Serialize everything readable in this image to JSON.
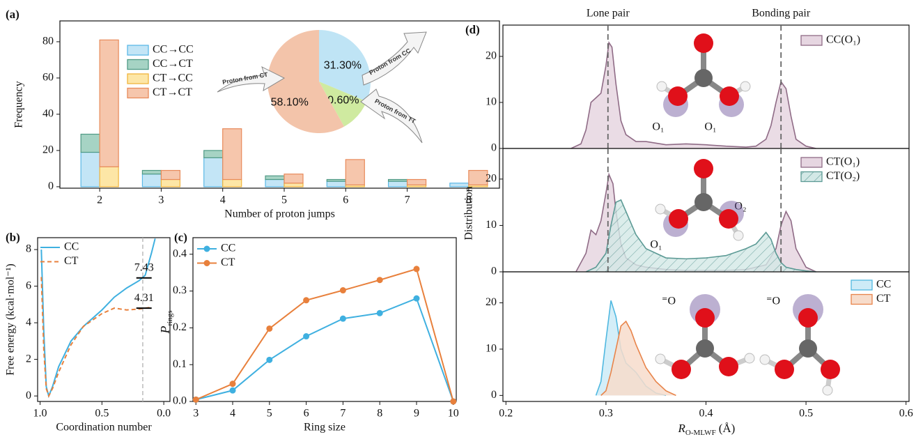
{
  "chart_data": [
    {
      "type": "bar",
      "panel": "(a)",
      "x_label": "Number of proton jumps",
      "y_label": "Frequency",
      "categories": [
        "2",
        "3",
        "4",
        "5",
        "6",
        "7",
        "8"
      ],
      "series": [
        {
          "name": "CC→CC",
          "color": "#c3e5f6",
          "edgecolor": "#5bb8e6",
          "values": [
            19,
            7,
            16,
            4,
            3,
            3,
            2
          ]
        },
        {
          "name": "CC→CT",
          "color": "#a6d3c4",
          "edgecolor": "#4f9a85",
          "values": [
            10,
            2,
            4,
            2,
            1,
            1,
            0
          ]
        },
        {
          "name": "CT→CC",
          "color": "#fde6a6",
          "edgecolor": "#f0b43c",
          "values": [
            11,
            4,
            4,
            2,
            1,
            1,
            1
          ]
        },
        {
          "name": "CT→CT",
          "color": "#f6c6ac",
          "edgecolor": "#e88a5a",
          "values": [
            70,
            5,
            28,
            5,
            14,
            3,
            8
          ]
        }
      ],
      "ylim": [
        -0.8,
        91.5
      ],
      "yticks": [
        0,
        20,
        40,
        60,
        80
      ],
      "legend": "upper left",
      "grid": false
    },
    {
      "type": "pie",
      "labels": [
        "Proton from CC",
        "Proton from TT",
        "Proton from CT"
      ],
      "values": [
        31.3,
        10.6,
        58.1
      ],
      "value_labels": [
        "31.30%",
        "10.60%",
        "58.10%"
      ],
      "colors": [
        "#bfe4f5",
        "#cfeaa0",
        "#f3c4aa"
      ]
    },
    {
      "type": "line",
      "panel": "(b)",
      "x_label": "Coordination number",
      "y_label": "Free energy (kcal·mol⁻¹)",
      "x": [
        0.99,
        0.97,
        0.95,
        0.93,
        0.9,
        0.85,
        0.75,
        0.65,
        0.5,
        0.4,
        0.3,
        0.2,
        0.15,
        0.1,
        0.07
      ],
      "series": [
        {
          "name": "CC",
          "color": "#3fb0e0",
          "linestyle": "solid",
          "values": [
            8.0,
            3.5,
            0.5,
            0,
            0.5,
            1.6,
            3.0,
            3.8,
            4.7,
            5.4,
            5.9,
            6.3,
            6.6,
            7.8,
            8.6
          ]
        },
        {
          "name": "CT",
          "color": "#e8803c",
          "linestyle": "dashed",
          "values": [
            6.5,
            2.5,
            0.4,
            0,
            0.4,
            1.3,
            2.8,
            3.8,
            4.5,
            4.8,
            4.7,
            4.75,
            4.8,
            4.85,
            null
          ]
        }
      ],
      "xlim": [
        1.02,
        -0.05
      ],
      "xticks": [
        {
          "value": 1,
          "label": "1.0"
        },
        0.5,
        {
          "value": 0,
          "label": "0.0"
        }
      ],
      "ylim": [
        -0.3,
        8.65
      ],
      "yticks": [
        0,
        2,
        4,
        6,
        8
      ],
      "vlines": [
        {
          "x": 0.17
        }
      ],
      "annotations": [
        {
          "label": "7.43",
          "x": 0.16,
          "y": 6.45
        },
        {
          "label": "4.31",
          "x": 0.16,
          "y": 4.8
        }
      ],
      "legend": "upper left",
      "grid": false
    },
    {
      "type": "line",
      "panel": "(c)",
      "x_label": "Ring size",
      "y_label": "P",
      "y_label_sub": "rings",
      "x": [
        3,
        4,
        5,
        6,
        7,
        8,
        9,
        10
      ],
      "series": [
        {
          "name": "CC",
          "color": "#3fb0e0",
          "linestyle": "solid",
          "values": [
            0.005,
            0.03,
            0.113,
            0.177,
            0.225,
            0.24,
            0.28,
            0
          ]
        },
        {
          "name": "CT",
          "color": "#e8803c",
          "linestyle": "solid",
          "values": [
            0.005,
            0.048,
            0.198,
            0.275,
            0.302,
            0.33,
            0.36,
            0
          ]
        }
      ],
      "markers": true,
      "xlim": [
        2.92,
        10.08
      ],
      "xticks": [
        3,
        4,
        5,
        6,
        7,
        8,
        9,
        10
      ],
      "ylim": [
        0,
        0.445
      ],
      "yticks": [
        {
          "value": 0,
          "label": "0.0"
        },
        0.1,
        0.2,
        0.3,
        0.4
      ],
      "legend": "upper left",
      "grid": false
    },
    {
      "type": "area",
      "panel": "(d)",
      "series": [
        {
          "name": "CC(O₁)",
          "color": "#e6d6e1",
          "edgecolor": "#8f6b86",
          "x": [
            0.265,
            0.275,
            0.28,
            0.285,
            0.29,
            0.295,
            0.3,
            0.303,
            0.306,
            0.31,
            0.315,
            0.32,
            0.33,
            0.34,
            0.36,
            0.38,
            0.4,
            0.42,
            0.44,
            0.45,
            0.46,
            0.465,
            0.47,
            0.475,
            0.48,
            0.485,
            0.49,
            0.5,
            0.51
          ],
          "values": [
            0,
            1,
            4,
            10,
            11,
            12,
            18,
            23,
            22,
            14,
            6,
            3,
            1.5,
            1.5,
            0.8,
            1,
            0.8,
            0.5,
            0.3,
            0.5,
            2,
            5,
            10,
            14.5,
            13,
            7,
            2,
            0.5,
            0
          ]
        }
      ],
      "xlim": [
        0.197,
        0.603
      ],
      "ylim": [
        0,
        26.8
      ],
      "yticks": [
        0,
        10,
        20
      ],
      "vlines": [
        {
          "x": 0.302,
          "label": "Lone pair"
        },
        {
          "x": 0.475,
          "label": "Bonding pair"
        }
      ],
      "annotations": [
        {
          "label": "O₁"
        },
        {
          "label": "O₁"
        }
      ],
      "legend": "upper right",
      "grid": false
    },
    {
      "type": "area",
      "y_label": "Distribution",
      "series": [
        {
          "name": "CT(O₁)",
          "color": "#e6d6e1",
          "edgecolor": "#8f6b86",
          "x": [
            0.27,
            0.28,
            0.285,
            0.29,
            0.295,
            0.3,
            0.303,
            0.307,
            0.31,
            0.315,
            0.32,
            0.33,
            0.34,
            0.36,
            0.38,
            0.4,
            0.42,
            0.44,
            0.46,
            0.47,
            0.475,
            0.48,
            0.485,
            0.49,
            0.5,
            0.51
          ],
          "values": [
            0,
            4,
            9,
            8,
            11,
            17,
            21,
            19,
            13,
            6,
            3,
            1.5,
            1,
            0.5,
            0.3,
            0.3,
            0.3,
            0.5,
            1.5,
            5,
            10,
            13,
            11,
            5,
            1,
            0
          ]
        },
        {
          "name": "CT(O₂)",
          "color": "#d3e8e6",
          "edgecolor": "#5c9a95",
          "hatch": true,
          "x": [
            0.28,
            0.29,
            0.3,
            0.305,
            0.31,
            0.315,
            0.32,
            0.33,
            0.34,
            0.36,
            0.38,
            0.4,
            0.42,
            0.44,
            0.45,
            0.46,
            0.465,
            0.47,
            0.475,
            0.48,
            0.49,
            0.5,
            0.51
          ],
          "values": [
            0,
            1,
            4,
            10,
            15,
            15.5,
            13,
            8,
            5,
            3,
            2.8,
            3,
            3.5,
            5,
            6,
            8.5,
            7,
            4,
            2,
            1,
            0.5,
            0.2,
            0
          ]
        }
      ],
      "xlim": [
        0.197,
        0.603
      ],
      "ylim": [
        0,
        26.6
      ],
      "yticks": [
        0,
        10,
        20
      ],
      "vlines": [
        {
          "x": 0.302
        },
        {
          "x": 0.475
        }
      ],
      "annotations": [
        {
          "label": "O₂"
        },
        {
          "label": "O₁"
        }
      ],
      "legend": "upper right",
      "grid": false
    },
    {
      "type": "area",
      "x_label": "R",
      "x_label_sub": "O-MLWF",
      "x_label_unit": "(Å)",
      "series": [
        {
          "name": "CC",
          "color": "#cdebf7",
          "edgecolor": "#4fb8e0",
          "x": [
            0.29,
            0.295,
            0.3,
            0.305,
            0.31,
            0.315,
            0.32,
            0.33,
            0.34,
            0.35,
            0.36
          ],
          "values": [
            0,
            3,
            12,
            20.5,
            17,
            10,
            7,
            5,
            2,
            0.5,
            0
          ]
        },
        {
          "name": "CT",
          "color": "#f7dccb",
          "edgecolor": "#e8844a",
          "x": [
            0.295,
            0.3,
            0.305,
            0.31,
            0.315,
            0.32,
            0.325,
            0.33,
            0.34,
            0.35,
            0.36,
            0.37
          ],
          "values": [
            0,
            1,
            5,
            10,
            15,
            16,
            14,
            11,
            6,
            3,
            1,
            0
          ]
        }
      ],
      "xlim": [
        0.197,
        0.603
      ],
      "xticks": [
        0.2,
        0.3,
        0.4,
        0.5,
        0.6
      ],
      "ylim": [
        -1.3,
        26.7
      ],
      "yticks": [
        0,
        10,
        20
      ],
      "annotations": [
        {
          "label": "⁼O"
        },
        {
          "label": "⁼O"
        }
      ],
      "legend": "upper right",
      "grid": false
    }
  ]
}
